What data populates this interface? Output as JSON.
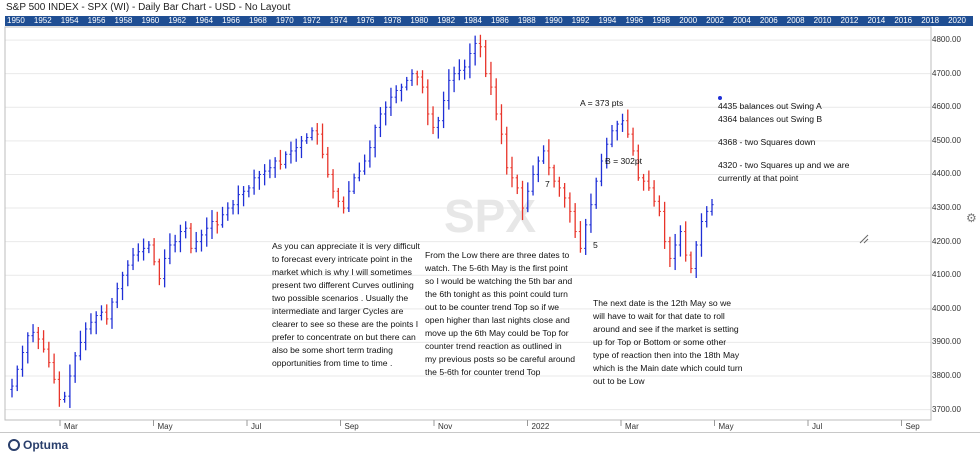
{
  "header": {
    "title": "S&P 500 INDEX - SPX (WI) - Daily Bar Chart - USD - No Layout",
    "years": [
      "1950",
      "1952",
      "1954",
      "1956",
      "1958",
      "1960",
      "1962",
      "1964",
      "1966",
      "1968",
      "1970",
      "1972",
      "1974",
      "1976",
      "1978",
      "1980",
      "1982",
      "1984",
      "1986",
      "1988",
      "1990",
      "1992",
      "1994",
      "1996",
      "1998",
      "2000",
      "2002",
      "2004",
      "2006",
      "2008",
      "2010",
      "2012",
      "2014",
      "2016",
      "2018",
      "2020"
    ]
  },
  "watermark": "SPX",
  "labels": {
    "swing_a": "A = 373 pts",
    "swing_b": "B = 302pt",
    "num7": "7",
    "num5": "5"
  },
  "notes": {
    "left": "As you can appreciate it is very difficult to forecast every intricate point in the market  which is why I will sometimes present two different Curves outlining two possible scenarios . Usually the intermediate and larger Cycles are clearer to see so these are the points I prefer to concentrate on but there can also be some short term trading opportunities from time to time .",
    "middle": "From the Low there are three dates to watch. The 5-6th May is the first point so I would be watching  the 5th bar and the 6th tonight  as this point could turn out to be counter trend Top so if we open higher than last nights close and move up the 6th May could be Top for counter trend reaction as outlined in my previous posts so be careful around the 5-6th for counter trend Top",
    "right": "The next date is the 12th May so we will have to wait for that date to roll around and see if the market is setting up for Top or Bottom or some other type of reaction then into the 18th May which is the Main date which could turn out to be Low"
  },
  "annotation_box": {
    "line1": "4435 balances out Swing A",
    "line2": "4364 balances out Swing B",
    "line3": "4368 - two Squares down",
    "line4": "4320 - two Squares up and we are currently at that point"
  },
  "footer": {
    "logo": "Optuma"
  },
  "colors": {
    "up": "#1f2fd6",
    "down": "#e8342a",
    "yearbar": "#1f4e93",
    "grid": "#e9e9e9"
  },
  "chart_data": {
    "type": "bar",
    "title": "S&P 500 INDEX - SPX (WI) - Daily Bar Chart - USD - No Layout",
    "ylim": [
      3675,
      4830
    ],
    "yticks": [
      3700,
      3800,
      3900,
      4000,
      4100,
      4200,
      4300,
      4400,
      4500,
      4600,
      4700,
      4800
    ],
    "x_tick_labels": [
      "Mar",
      "May",
      "Jul",
      "Sep",
      "Nov",
      "2022",
      "Mar",
      "May",
      "Jul",
      "Sep"
    ],
    "series": [
      {
        "note": "approximate daily closes, Feb 2021 - early May 2022",
        "values": [
          3770,
          3820,
          3870,
          3920,
          3930,
          3910,
          3880,
          3840,
          3790,
          3730,
          3740,
          3800,
          3860,
          3900,
          3940,
          3960,
          3980,
          3990,
          3970,
          4020,
          4060,
          4100,
          4130,
          4160,
          4170,
          4180,
          4190,
          4140,
          4090,
          4150,
          4190,
          4200,
          4230,
          4240,
          4180,
          4200,
          4220,
          4240,
          4260,
          4250,
          4280,
          4300,
          4310,
          4340,
          4350,
          4360,
          4390,
          4400,
          4410,
          4420,
          4440,
          4430,
          4460,
          4470,
          4480,
          4500,
          4510,
          4530,
          4520,
          4460,
          4400,
          4350,
          4320,
          4300,
          4350,
          4390,
          4410,
          4440,
          4480,
          4540,
          4580,
          4600,
          4630,
          4650,
          4660,
          4680,
          4700,
          4690,
          4660,
          4580,
          4540,
          4560,
          4620,
          4680,
          4700,
          4710,
          4720,
          4760,
          4790,
          4780,
          4700,
          4660,
          4580,
          4520,
          4420,
          4390,
          4360,
          4300,
          4350,
          4400,
          4440,
          4470,
          4420,
          4380,
          4360,
          4330,
          4290,
          4230,
          4180,
          4250,
          4310,
          4380,
          4440,
          4490,
          4530,
          4550,
          4560,
          4520,
          4470,
          4390,
          4380,
          4360,
          4320,
          4290,
          4200,
          4150,
          4190,
          4230,
          4160,
          4120,
          4190,
          4260,
          4290,
          4310
        ]
      }
    ]
  }
}
